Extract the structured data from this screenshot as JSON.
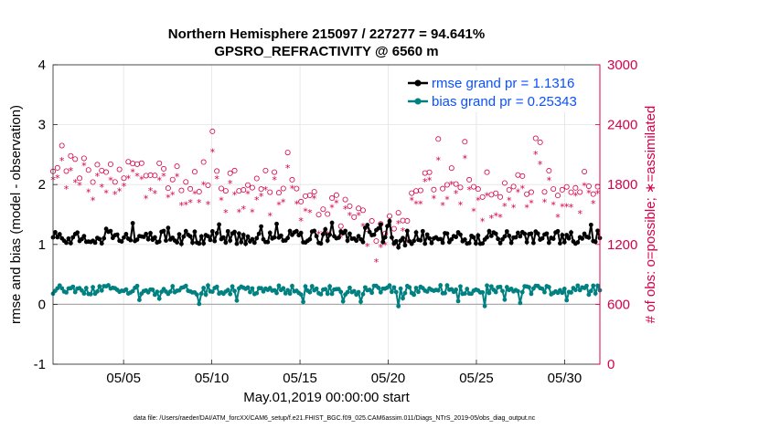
{
  "chart_data": {
    "type": "line",
    "title": "Northern Hemisphere 215097 / 227277 = 94.641%",
    "subtitle": "GPSRO_REFRACTIVITY @ 6560 m",
    "xlabel": "May.01,2019 00:00:00 start",
    "ylabel_left": "rmse and bias (model - observation)",
    "ylabel_right": "# of obs: o=possible; ∗=assimilated",
    "footnote": "data file: /Users/raeder/DAI/ATM_forcXX/CAM6_setup/f.e21.FHIST_BGC.f09_025.CAM6assim.011/Diags_NTrS_2019-05/obs_diag_output.nc",
    "xlim": [
      1,
      32
    ],
    "ylim_left": [
      -1,
      4
    ],
    "ylim_right": [
      0,
      3000
    ],
    "x_ticks": [
      5,
      10,
      15,
      20,
      25,
      30
    ],
    "x_tick_labels": [
      "05/05",
      "05/10",
      "05/15",
      "05/20",
      "05/25",
      "05/30"
    ],
    "y_ticks_left": [
      "-1",
      "0",
      "1",
      "2",
      "3",
      "4"
    ],
    "y_ticks_right": [
      "0",
      "600",
      "1200",
      "1800",
      "2400",
      "3000"
    ],
    "grid": true,
    "legend_position": "top-right",
    "zero_line": true,
    "series_summary": {
      "rmse": {
        "name": "rmse grand pr = 1.1316",
        "color": "#000000",
        "min": 0.95,
        "max": 1.45,
        "typical": 1.12
      },
      "bias": {
        "name": "bias grand pr = 0.25343",
        "color": "#008080",
        "min": -0.03,
        "max": 0.42,
        "typical": 0.24
      },
      "possible": {
        "marker": "o",
        "color": "#d6004b",
        "typical_start": 1950,
        "dip_near": 19.5,
        "typical_end": 1800
      },
      "assimilated": {
        "marker": "*",
        "color": "#d6004b",
        "typical_start": 1850,
        "dip_near": 19.5,
        "typical_end": 1700
      }
    },
    "colors": {
      "rmse": "#000000",
      "bias": "#008080",
      "obs": "#d6004b",
      "legend_text": "#0a50ff",
      "grid": "#e3e3e3",
      "zero_line": "#aaaaaa"
    }
  }
}
